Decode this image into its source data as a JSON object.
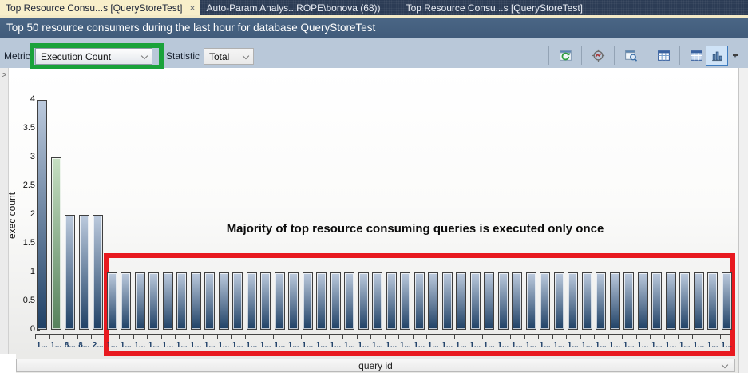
{
  "tabs": {
    "tab1": "Top Resource Consu...s [QueryStoreTest]",
    "tab1_close": "×",
    "tab2": "Auto-Param Analys...ROPE\\bonova (68))",
    "tab3": "Top Resource Consu...s [QueryStoreTest]"
  },
  "header": {
    "title": "Top 50 resource consumers during the last hour for database QueryStoreTest"
  },
  "toolbar": {
    "metric_label": "Metric",
    "metric_value": "Execution Count",
    "statistic_label": "Statistic",
    "statistic_value": "Total"
  },
  "splitter": {
    "chevron": ">"
  },
  "annotations": {
    "note": "Majority of top resource consuming queries is executed only once",
    "green_box_color": "#1aa23a",
    "red_box_color": "#e8191f"
  },
  "chart_data": {
    "type": "bar",
    "ylabel": "exec count",
    "xlabel": "query id",
    "ylim": [
      0,
      4
    ],
    "yticks": [
      0,
      0.5,
      1,
      1.5,
      2,
      2.5,
      3,
      3.5,
      4
    ],
    "grid": false,
    "legend": false,
    "categories": [
      "1...",
      "1...",
      "8...",
      "8...",
      "2...",
      "1...",
      "1...",
      "1...",
      "1...",
      "1...",
      "1...",
      "1...",
      "1...",
      "1...",
      "1...",
      "1...",
      "1...",
      "1...",
      "1...",
      "1...",
      "1...",
      "1...",
      "1...",
      "1...",
      "1...",
      "1...",
      "1...",
      "1...",
      "1...",
      "1...",
      "1...",
      "1...",
      "1...",
      "1...",
      "1...",
      "1...",
      "1...",
      "1...",
      "1...",
      "1...",
      "1...",
      "1...",
      "1...",
      "1...",
      "1...",
      "1...",
      "1...",
      "1...",
      "1...",
      "1..."
    ],
    "values": [
      4,
      3,
      2,
      2,
      2,
      1,
      1,
      1,
      1,
      1,
      1,
      1,
      1,
      1,
      1,
      1,
      1,
      1,
      1,
      1,
      1,
      1,
      1,
      1,
      1,
      1,
      1,
      1,
      1,
      1,
      1,
      1,
      1,
      1,
      1,
      1,
      1,
      1,
      1,
      1,
      1,
      1,
      1,
      1,
      1,
      1,
      1,
      1,
      1,
      1
    ],
    "highlighted_index": 1,
    "colors": {
      "bar_top": "#bccadd",
      "bar_bottom": "#1f4166",
      "highlight_top": "#c6dfc2",
      "highlight_bottom": "#56815c"
    }
  }
}
